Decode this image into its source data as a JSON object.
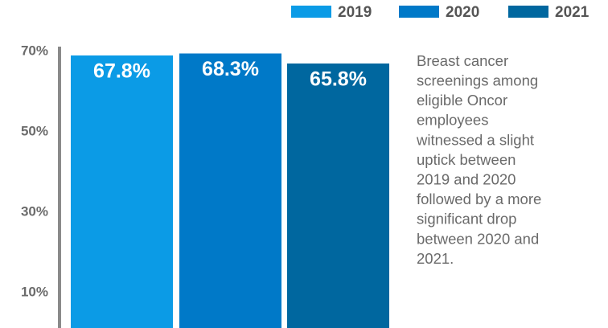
{
  "chart_data": {
    "type": "bar",
    "categories": [
      "2019",
      "2020",
      "2021"
    ],
    "values": [
      67.8,
      68.3,
      65.8
    ],
    "value_labels": [
      "67.8%",
      "68.3%",
      "65.8%"
    ],
    "colors": [
      "#0b9be6",
      "#0079c8",
      "#00679f"
    ],
    "ylim": [
      0,
      70
    ],
    "yticks": [
      {
        "value": 10,
        "label": "10%"
      },
      {
        "value": 30,
        "label": "30%"
      },
      {
        "value": 50,
        "label": "50%"
      },
      {
        "value": 70,
        "label": "70%"
      }
    ],
    "legend": "top-right",
    "annotation": [
      "Breast cancer",
      "screenings among",
      "eligible Oncor",
      "employees",
      "witnessed a slight",
      "uptick between",
      "2019 and 2020",
      "followed by a more",
      "significant drop",
      "between 2020 and",
      "2021."
    ]
  }
}
